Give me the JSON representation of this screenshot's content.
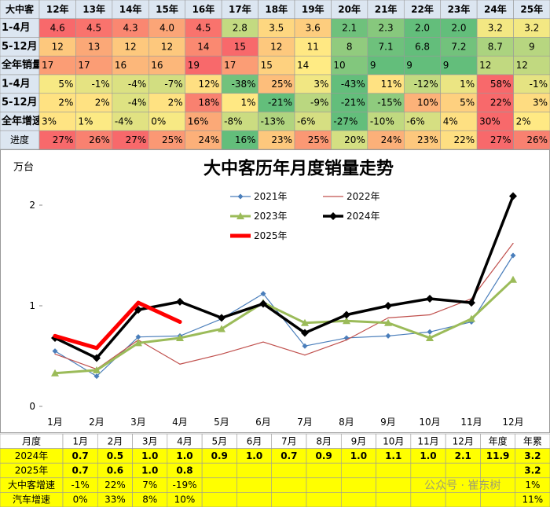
{
  "top_table": {
    "header": [
      "大中客",
      "12年",
      "13年",
      "14年",
      "15年",
      "16年",
      "17年",
      "18年",
      "19年",
      "20年",
      "21年",
      "22年",
      "23年",
      "24年",
      "25年"
    ],
    "rows": [
      {
        "label": "1-4月",
        "cells": [
          "4.6",
          "4.5",
          "4.3",
          "4.0",
          "4.5",
          "2.8",
          "3.5",
          "3.6",
          "2.1",
          "2.3",
          "2.0",
          "2.0",
          "3.2",
          "3.2"
        ]
      },
      {
        "label": "5-12月",
        "cells": [
          "12",
          "13",
          "12",
          "12",
          "14",
          "15",
          "12",
          "11",
          "8",
          "7.1",
          "6.8",
          "7.2",
          "8.7",
          "9"
        ]
      },
      {
        "label": "全年销量",
        "cells": [
          "17",
          "17",
          "16",
          "16",
          "19",
          "17",
          "15",
          "14",
          "10",
          "9",
          "9",
          "9",
          "12",
          "12"
        ]
      },
      {
        "label": "1-4月",
        "cells": [
          "5%",
          "-1%",
          "-4%",
          "-7%",
          "12%",
          "-38%",
          "25%",
          "3%",
          "-43%",
          "11%",
          "-12%",
          "1%",
          "58%",
          "-1%"
        ]
      },
      {
        "label": "5-12月",
        "cells": [
          "2%",
          "2%",
          "-4%",
          "2%",
          "18%",
          "1%",
          "-21%",
          "-9%",
          "-21%",
          "-15%",
          "10%",
          "5%",
          "22%",
          "3%"
        ]
      },
      {
        "label": "全年增速",
        "cells": [
          "3%",
          "1%",
          "-4%",
          "0%",
          "16%",
          "-8%",
          "-13%",
          "-6%",
          "-27%",
          "-10%",
          "-6%",
          "4%",
          "30%",
          "2%"
        ]
      },
      {
        "label": "进度",
        "cells": [
          "27%",
          "26%",
          "27%",
          "25%",
          "24%",
          "16%",
          "23%",
          "25%",
          "20%",
          "24%",
          "23%",
          "22%",
          "27%",
          "26%"
        ]
      }
    ]
  },
  "chart_data": {
    "type": "line",
    "title": "大中客历年月度销量走势",
    "ylabel": "万台",
    "categories": [
      "1月",
      "2月",
      "3月",
      "4月",
      "5月",
      "6月",
      "7月",
      "8月",
      "9月",
      "10月",
      "11月",
      "12月"
    ],
    "ylim": [
      0,
      2.5
    ],
    "yticks": [
      0,
      1,
      2
    ],
    "series": [
      {
        "name": "2021年",
        "color": "#4a7ebb",
        "marker": "diamond",
        "line_width": 1.2,
        "values": [
          0.55,
          0.3,
          0.69,
          0.7,
          0.87,
          1.12,
          0.6,
          0.68,
          0.7,
          0.74,
          0.84,
          1.5
        ]
      },
      {
        "name": "2022年",
        "color": "#c0504d",
        "line_width": 1.2,
        "values": [
          0.52,
          0.37,
          0.66,
          0.42,
          0.52,
          0.64,
          0.51,
          0.66,
          0.88,
          0.91,
          1.07,
          1.62
        ]
      },
      {
        "name": "2023年",
        "color": "#9bbb59",
        "marker": "triangle",
        "line_width": 3,
        "values": [
          0.33,
          0.36,
          0.63,
          0.68,
          0.77,
          1.03,
          0.83,
          0.85,
          0.83,
          0.68,
          0.87,
          1.26
        ]
      },
      {
        "name": "2024年",
        "color": "#000000",
        "marker": "diamond",
        "line_width": 3.5,
        "values": [
          0.68,
          0.48,
          0.96,
          1.04,
          0.88,
          1.02,
          0.73,
          0.91,
          1.0,
          1.07,
          1.03,
          2.09
        ]
      },
      {
        "name": "2025年",
        "color": "#ff0000",
        "line_width": 5,
        "values": [
          0.7,
          0.58,
          1.03,
          0.84,
          null,
          null,
          null,
          null,
          null,
          null,
          null,
          null
        ]
      }
    ]
  },
  "bottom_table": {
    "header": [
      "月度",
      "1月",
      "2月",
      "3月",
      "4月",
      "5月",
      "6月",
      "7月",
      "8月",
      "9月",
      "10月",
      "11月",
      "12月",
      "年度",
      "年累"
    ],
    "rows": [
      {
        "label": "2024年",
        "cells": [
          "0.7",
          "0.5",
          "1.0",
          "1.0",
          "0.9",
          "1.0",
          "0.7",
          "0.9",
          "1.0",
          "1.1",
          "1.0",
          "2.1",
          "11.9",
          "3.2"
        ]
      },
      {
        "label": "2025年",
        "cells": [
          "0.7",
          "0.6",
          "1.0",
          "0.8",
          null,
          null,
          null,
          null,
          null,
          null,
          null,
          null,
          null,
          "3.2"
        ]
      },
      {
        "label": "大中客增速",
        "cells": [
          "-1%",
          "22%",
          "7%",
          "-19%",
          null,
          null,
          null,
          null,
          null,
          null,
          null,
          null,
          null,
          "1%"
        ]
      },
      {
        "label": "汽车增速",
        "cells": [
          "0%",
          "33%",
          "8%",
          "10%",
          null,
          null,
          null,
          null,
          null,
          null,
          null,
          null,
          null,
          "11%"
        ]
      }
    ]
  },
  "watermark": "公众号 · 崔东树"
}
